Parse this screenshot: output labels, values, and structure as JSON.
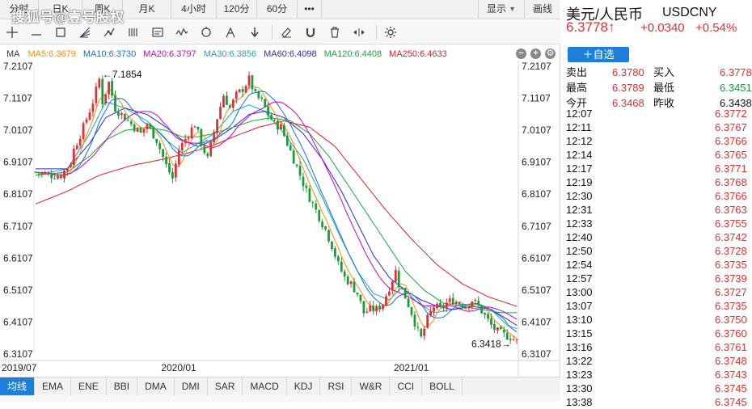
{
  "watermark": "搜狐号@壹号股权",
  "period_bar": {
    "tabs": [
      {
        "label": "分时",
        "w": 48
      },
      {
        "label": "日K",
        "w": 54
      },
      {
        "label": "周K",
        "w": 50
      },
      {
        "label": "月K",
        "w": 60
      },
      {
        "label": "4小时",
        "w": 56
      },
      {
        "label": "120分",
        "w": 50
      },
      {
        "label": "60分",
        "w": 50
      },
      {
        "label": "•••",
        "w": 30
      }
    ],
    "display_label": "显示",
    "draw_label": "画线"
  },
  "toolbar": {
    "tools": [
      "crosshair-icon",
      "line-icon",
      "rectangle-icon",
      "fan-icon",
      "trend-line-icon",
      "parallel-channel-icon",
      "text-note-icon",
      "wave-icon",
      "cycle-icon",
      "fork-icon",
      "arrow-down-icon",
      "eraser-icon",
      "magnet-icon",
      "trash-icon",
      "hide-show-icon",
      "settings-icon"
    ]
  },
  "legend": {
    "title": "MA",
    "items": [
      {
        "label": "MA5:6.3679",
        "color": "#ff8a00"
      },
      {
        "label": "MA10:6.3730",
        "color": "#1b6fd6"
      },
      {
        "label": "MA20:6.3797",
        "color": "#d100c5"
      },
      {
        "label": "MA30:6.3856",
        "color": "#12a9c9"
      },
      {
        "label": "MA60:6.4098",
        "color": "#2a2ad6"
      },
      {
        "label": "MA120:6.4408",
        "color": "#19a83a"
      },
      {
        "label": "MA250:6.4633",
        "color": "#e02020"
      }
    ]
  },
  "chart_data": {
    "type": "candlestick",
    "instrument": "USDCNY",
    "y_ticks": [
      "7.2107",
      "7.1107",
      "7.0107",
      "6.9107",
      "6.8107",
      "6.7107",
      "6.6107",
      "6.5107",
      "6.4107",
      "6.3107"
    ],
    "ylim": [
      6.3107,
      7.2107
    ],
    "x_tick_labels": [
      "2019/07",
      "2020/01",
      "2021/01"
    ],
    "annotations": {
      "high": {
        "label": "←7.1854",
        "value": 7.1854
      },
      "low": {
        "label": "6.3418→",
        "value": 6.3418
      }
    },
    "price_path": [
      [
        0,
        6.88
      ],
      [
        4,
        6.87
      ],
      [
        8,
        6.87
      ],
      [
        11,
        6.91
      ],
      [
        12,
        6.95
      ],
      [
        15,
        7.02
      ],
      [
        18,
        7.1
      ],
      [
        20,
        7.17
      ],
      [
        21,
        7.1
      ],
      [
        23,
        7.16
      ],
      [
        25,
        7.08
      ],
      [
        28,
        7.05
      ],
      [
        30,
        7.03
      ],
      [
        33,
        7.0
      ],
      [
        35,
        7.03
      ],
      [
        38,
        6.98
      ],
      [
        41,
        6.9
      ],
      [
        43,
        6.86
      ],
      [
        45,
        6.95
      ],
      [
        48,
        7.0
      ],
      [
        50,
        7.03
      ],
      [
        52,
        6.97
      ],
      [
        54,
        6.92
      ],
      [
        57,
        7.05
      ],
      [
        59,
        7.12
      ],
      [
        61,
        7.08
      ],
      [
        63,
        7.12
      ],
      [
        65,
        7.14
      ],
      [
        67,
        7.17
      ],
      [
        69,
        7.12
      ],
      [
        71,
        7.1
      ],
      [
        73,
        7.06
      ],
      [
        75,
        7.03
      ],
      [
        77,
        7.02
      ],
      [
        79,
        6.97
      ],
      [
        81,
        6.92
      ],
      [
        83,
        6.87
      ],
      [
        85,
        6.82
      ],
      [
        87,
        6.78
      ],
      [
        89,
        6.74
      ],
      [
        91,
        6.7
      ],
      [
        93,
        6.65
      ],
      [
        95,
        6.59
      ],
      [
        97,
        6.55
      ],
      [
        99,
        6.53
      ],
      [
        101,
        6.5
      ],
      [
        103,
        6.44
      ],
      [
        105,
        6.45
      ],
      [
        107,
        6.45
      ],
      [
        109,
        6.47
      ],
      [
        111,
        6.52
      ],
      [
        113,
        6.57
      ],
      [
        114,
        6.53
      ],
      [
        116,
        6.49
      ],
      [
        118,
        6.44
      ],
      [
        120,
        6.38
      ],
      [
        121,
        6.36
      ],
      [
        123,
        6.42
      ],
      [
        125,
        6.46
      ],
      [
        127,
        6.45
      ],
      [
        129,
        6.47
      ],
      [
        131,
        6.48
      ],
      [
        133,
        6.47
      ],
      [
        135,
        6.46
      ],
      [
        137,
        6.48
      ],
      [
        139,
        6.46
      ],
      [
        141,
        6.43
      ],
      [
        143,
        6.4
      ],
      [
        145,
        6.38
      ],
      [
        147,
        6.37
      ],
      [
        149,
        6.365
      ],
      [
        151,
        6.35
      ]
    ],
    "ma": [
      {
        "name": "MA30",
        "color": "#12a9c9",
        "points": [
          [
            0,
            6.87
          ],
          [
            10,
            6.89
          ],
          [
            17,
            7.0
          ],
          [
            22,
            7.1
          ],
          [
            28,
            7.08
          ],
          [
            35,
            7.04
          ],
          [
            41,
            6.98
          ],
          [
            46,
            6.94
          ],
          [
            51,
            6.97
          ],
          [
            56,
            7.0
          ],
          [
            62,
            7.07
          ],
          [
            67,
            7.09
          ],
          [
            72,
            7.07
          ],
          [
            78,
            7.0
          ],
          [
            84,
            6.92
          ],
          [
            90,
            6.8
          ],
          [
            96,
            6.67
          ],
          [
            101,
            6.57
          ],
          [
            106,
            6.5
          ],
          [
            111,
            6.48
          ],
          [
            115,
            6.52
          ],
          [
            120,
            6.47
          ],
          [
            125,
            6.44
          ],
          [
            131,
            6.45
          ],
          [
            137,
            6.47
          ],
          [
            143,
            6.45
          ],
          [
            148,
            6.4
          ],
          [
            151,
            6.39
          ]
        ]
      },
      {
        "name": "MA60",
        "color": "#2a2ad6",
        "points": [
          [
            0,
            6.89
          ],
          [
            10,
            6.89
          ],
          [
            17,
            6.97
          ],
          [
            22,
            7.05
          ],
          [
            28,
            7.08
          ],
          [
            35,
            7.06
          ],
          [
            41,
            7.02
          ],
          [
            46,
            6.98
          ],
          [
            51,
            6.96
          ],
          [
            56,
            6.98
          ],
          [
            62,
            7.02
          ],
          [
            67,
            7.06
          ],
          [
            72,
            7.07
          ],
          [
            78,
            7.05
          ],
          [
            84,
            7.0
          ],
          [
            90,
            6.92
          ],
          [
            96,
            6.82
          ],
          [
            101,
            6.72
          ],
          [
            106,
            6.62
          ],
          [
            111,
            6.55
          ],
          [
            116,
            6.51
          ],
          [
            121,
            6.48
          ],
          [
            126,
            6.46
          ],
          [
            131,
            6.45
          ],
          [
            137,
            6.46
          ],
          [
            143,
            6.45
          ],
          [
            148,
            6.42
          ],
          [
            151,
            6.4
          ]
        ]
      },
      {
        "name": "MA120",
        "color": "#19a83a",
        "points": [
          [
            0,
            6.87
          ],
          [
            10,
            6.88
          ],
          [
            17,
            6.93
          ],
          [
            22,
            6.98
          ],
          [
            28,
            7.01
          ],
          [
            35,
            7.02
          ],
          [
            41,
            7.01
          ],
          [
            46,
            6.99
          ],
          [
            51,
            6.99
          ],
          [
            56,
            7.0
          ],
          [
            62,
            7.02
          ],
          [
            68,
            7.04
          ],
          [
            74,
            7.05
          ],
          [
            80,
            7.04
          ],
          [
            86,
            7.0
          ],
          [
            92,
            6.93
          ],
          [
            98,
            6.84
          ],
          [
            104,
            6.75
          ],
          [
            110,
            6.66
          ],
          [
            116,
            6.57
          ],
          [
            122,
            6.51
          ],
          [
            128,
            6.47
          ],
          [
            134,
            6.46
          ],
          [
            140,
            6.45
          ],
          [
            146,
            6.44
          ],
          [
            151,
            6.44
          ]
        ]
      },
      {
        "name": "MA250",
        "color": "#e02020",
        "points": [
          [
            0,
            6.78
          ],
          [
            10,
            6.82
          ],
          [
            20,
            6.87
          ],
          [
            30,
            6.9
          ],
          [
            40,
            6.92
          ],
          [
            48,
            6.94
          ],
          [
            55,
            6.96
          ],
          [
            62,
            6.99
          ],
          [
            70,
            7.02
          ],
          [
            78,
            7.04
          ],
          [
            86,
            7.02
          ],
          [
            94,
            6.96
          ],
          [
            102,
            6.86
          ],
          [
            110,
            6.76
          ],
          [
            118,
            6.67
          ],
          [
            126,
            6.59
          ],
          [
            134,
            6.53
          ],
          [
            142,
            6.49
          ],
          [
            151,
            6.46
          ]
        ]
      }
    ]
  },
  "indicators": {
    "tabs": [
      "均线",
      "EMA",
      "ENE",
      "BBI",
      "DMA",
      "DMI",
      "SAR",
      "MACD",
      "KDJ",
      "RSI",
      "W&R",
      "CCI",
      "BOLL"
    ],
    "active_index": 0
  },
  "quote": {
    "name": "美元/人民币",
    "code": "USDCNY",
    "price": "6.3778↑",
    "change": "+0.0340",
    "change_pct": "+0.54%",
    "add_button": "＋自选",
    "stats": [
      {
        "l1": "卖出",
        "v1": "6.3780",
        "l2": "买入",
        "v2": "6.3778",
        "c2": "red"
      },
      {
        "l1": "最高",
        "v1": "6.3789",
        "l2": "最低",
        "v2": "6.3451",
        "c2": "green"
      },
      {
        "l1": "今开",
        "v1": "6.3468",
        "l2": "昨收",
        "v2": "6.3438",
        "c2": "black"
      }
    ],
    "ticks": [
      {
        "time": "12:07",
        "price": "6.3772"
      },
      {
        "time": "12:11",
        "price": "6.3767"
      },
      {
        "time": "12:12",
        "price": "6.3766"
      },
      {
        "time": "12:14",
        "price": "6.3765"
      },
      {
        "time": "12:17",
        "price": "6.3771"
      },
      {
        "time": "12:19",
        "price": "6.3768"
      },
      {
        "time": "12:30",
        "price": "6.3766"
      },
      {
        "time": "12:31",
        "price": "6.3763"
      },
      {
        "time": "12:33",
        "price": "6.3755"
      },
      {
        "time": "12:40",
        "price": "6.3742"
      },
      {
        "time": "12:50",
        "price": "6.3728"
      },
      {
        "time": "12:54",
        "price": "6.3735"
      },
      {
        "time": "12:57",
        "price": "6.3739"
      },
      {
        "time": "13:00",
        "price": "6.3727"
      },
      {
        "time": "13:07",
        "price": "6.3735"
      },
      {
        "time": "13:10",
        "price": "6.3750"
      },
      {
        "time": "13:15",
        "price": "6.3760"
      },
      {
        "time": "13:16",
        "price": "6.3761"
      },
      {
        "time": "13:22",
        "price": "6.3748"
      },
      {
        "time": "13:23",
        "price": "6.3743"
      },
      {
        "time": "13:30",
        "price": "6.3745"
      },
      {
        "time": "13:38",
        "price": "6.3745"
      }
    ]
  }
}
